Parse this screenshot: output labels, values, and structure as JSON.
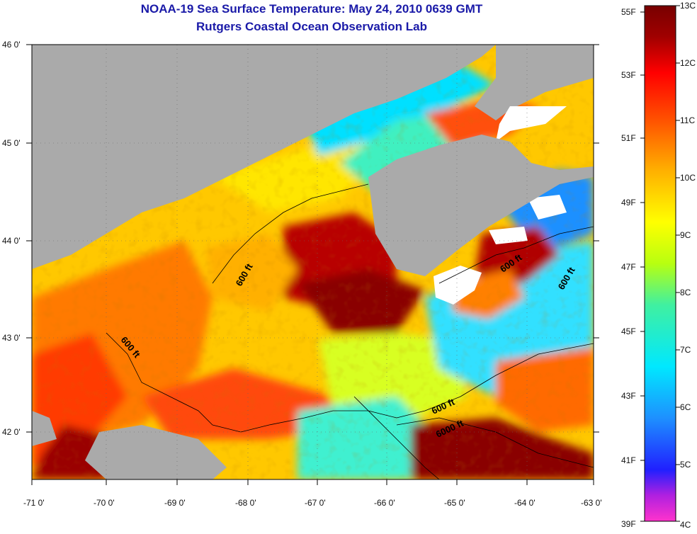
{
  "title": {
    "line1": "NOAA-19 Sea Surface Temperature:  May 24, 2010 0639 GMT",
    "line2": "Rutgers Coastal Ocean Observation Lab"
  },
  "axes": {
    "lat_labels": [
      "46 0'",
      "45 0'",
      "44 0'",
      "43 0'",
      "42 0'"
    ],
    "lon_labels": [
      "-71 0'",
      "-70 0'",
      "-69 0'",
      "-68 0'",
      "-67 0'",
      "-66 0'",
      "-65 0'",
      "-64 0'",
      "-63 0'"
    ]
  },
  "contour_labels": [
    "600 ft",
    "600 ft",
    "600 ft",
    "600 ft",
    "600 ft",
    "6000 ft"
  ],
  "colorbar": {
    "fahrenheit": [
      "55F",
      "53F",
      "51F",
      "49F",
      "47F",
      "45F",
      "43F",
      "41F",
      "39F"
    ],
    "celsius": [
      "13C",
      "12C",
      "11C",
      "10C",
      "9C",
      "8C",
      "7C",
      "6C",
      "5C",
      "4C"
    ],
    "colors": [
      "#ff33cc",
      "#7a10e0",
      "#0010ff",
      "#1e90ff",
      "#00e8ff",
      "#40f0a0",
      "#c8ff00",
      "#ffff00",
      "#ffb000",
      "#ff5000",
      "#ff0000",
      "#a00000",
      "#780000"
    ]
  },
  "colors": {
    "land": "#aaaaaa",
    "title": "#1a1aa8"
  }
}
